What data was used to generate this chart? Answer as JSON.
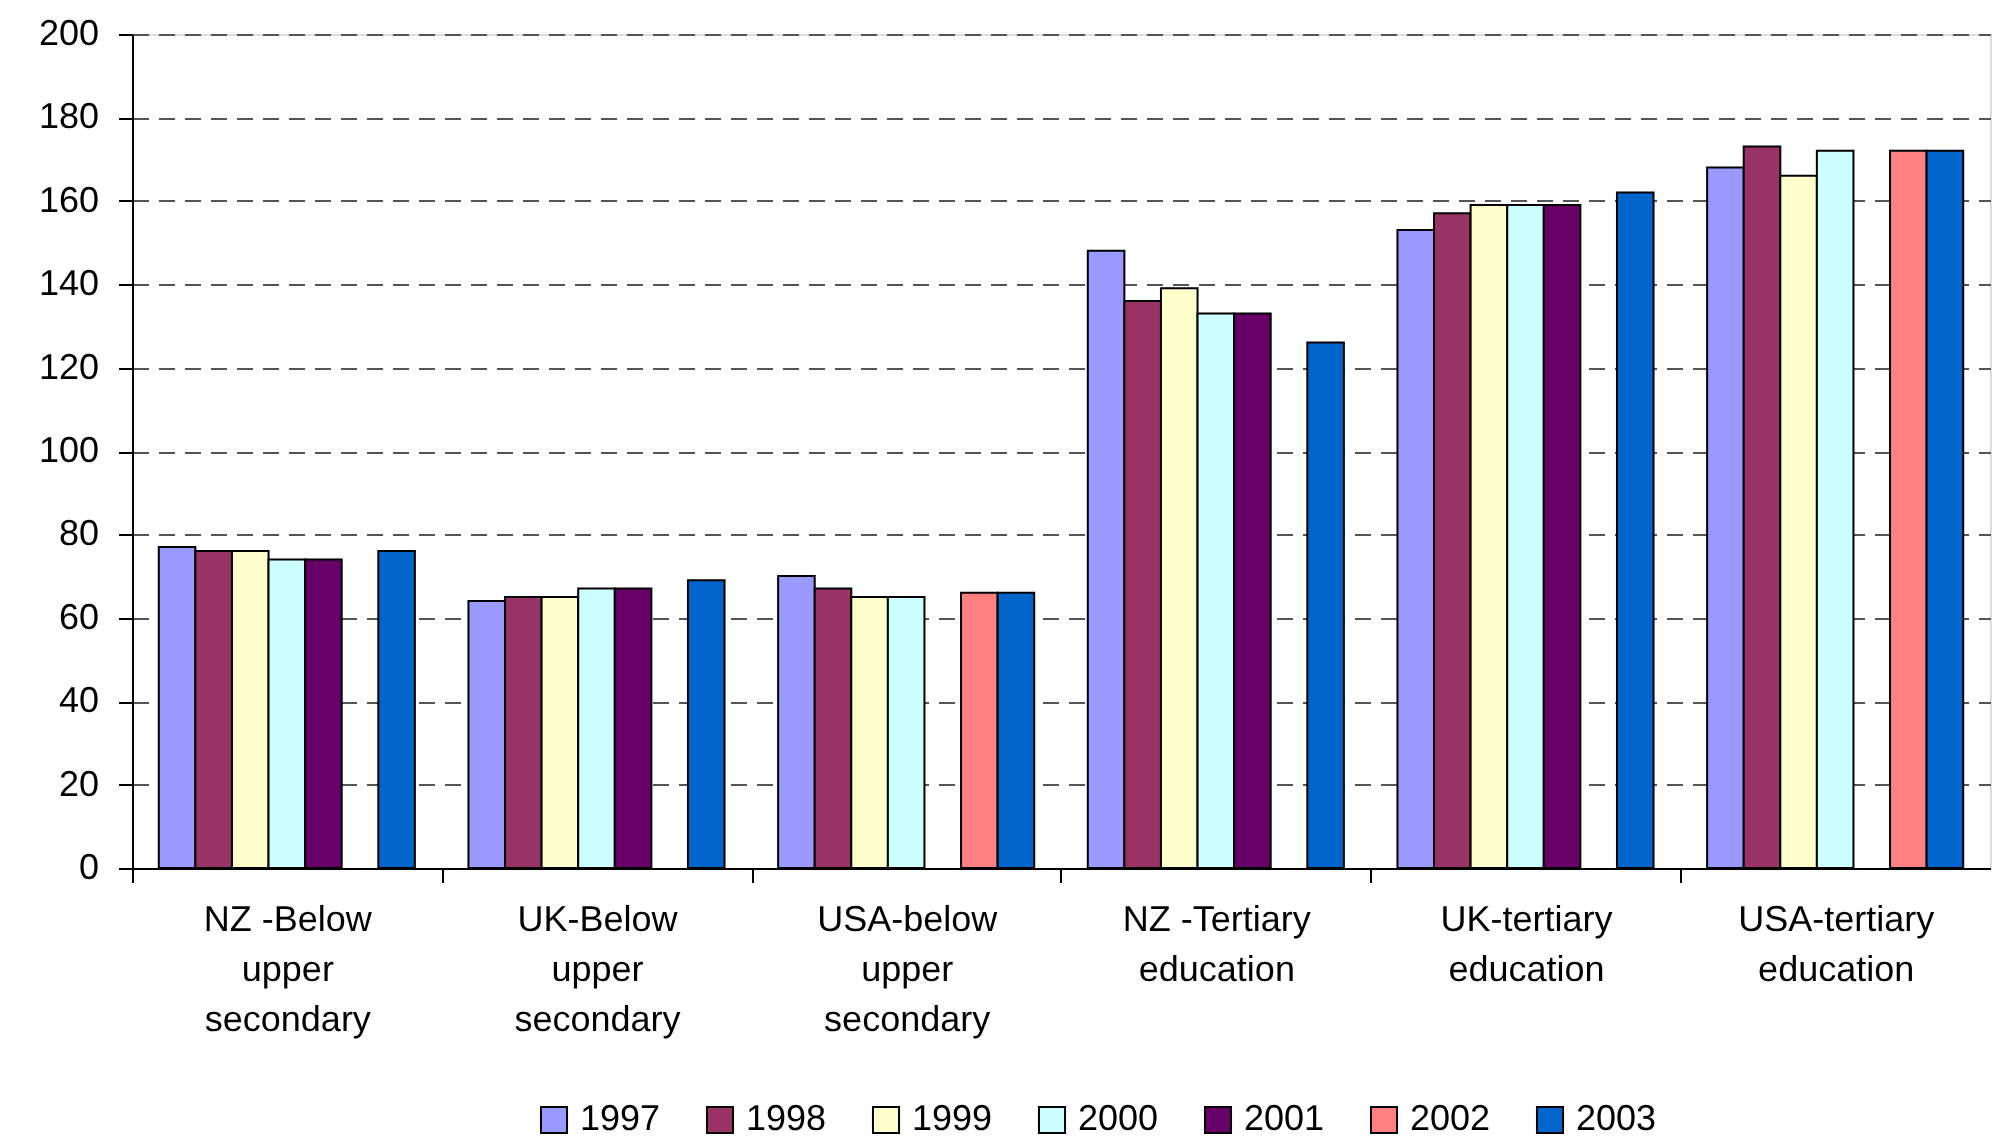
{
  "chart_data": {
    "type": "bar",
    "categories": [
      "NZ -Below upper secondary",
      "UK-Below upper secondary",
      "USA-below upper secondary",
      "NZ -Tertiary education",
      "UK-tertiary education",
      "USA-tertiary education"
    ],
    "series": [
      {
        "name": "1997",
        "color": "#9999ff",
        "values": [
          77,
          64,
          70,
          148,
          153,
          168
        ]
      },
      {
        "name": "1998",
        "color": "#993366",
        "values": [
          76,
          65,
          67,
          136,
          157,
          173
        ]
      },
      {
        "name": "1999",
        "color": "#ffffcc",
        "values": [
          76,
          65,
          65,
          139,
          159,
          166
        ]
      },
      {
        "name": "2000",
        "color": "#ccffff",
        "values": [
          74,
          67,
          65,
          133,
          159,
          172
        ]
      },
      {
        "name": "2001",
        "color": "#660066",
        "values": [
          74,
          67,
          null,
          133,
          159,
          null
        ]
      },
      {
        "name": "2002",
        "color": "#ff8080",
        "values": [
          null,
          null,
          66,
          null,
          null,
          172
        ]
      },
      {
        "name": "2003",
        "color": "#0066cc",
        "values": [
          76,
          69,
          66,
          126,
          162,
          172
        ]
      }
    ],
    "ylim": [
      0,
      200
    ],
    "yticks": [
      0,
      20,
      40,
      60,
      80,
      100,
      120,
      140,
      160,
      180,
      200
    ],
    "grid": "y",
    "legend": "bottom"
  }
}
